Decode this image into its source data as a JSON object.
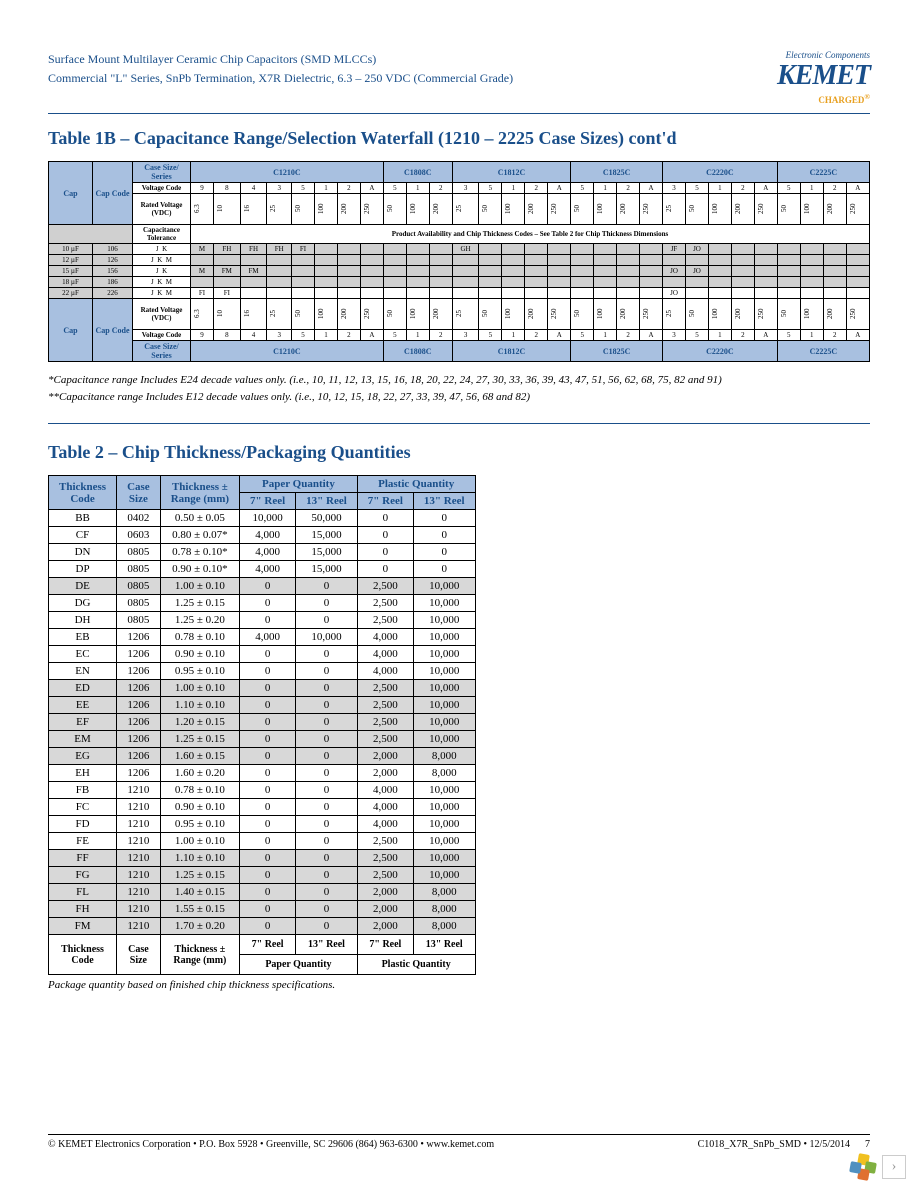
{
  "header": {
    "line1": "Surface Mount Multilayer Ceramic Chip Capacitors (SMD MLCCs)",
    "line2": "Commercial \"L\" Series, SnPb Termination, X7R Dielectric, 6.3 – 250 VDC (Commercial Grade)",
    "logo_top": "Electronic Components",
    "logo_main": "KEMET",
    "logo_sub": "CHARGED"
  },
  "table1": {
    "title": "Table 1B – Capacitance Range/Selection Waterfall (1210 – 2225 Case Sizes) cont'd",
    "header_labels": {
      "cap": "Cap",
      "cap_code": "Cap Code",
      "case_series": "Case Size/\nSeries",
      "voltage_code": "Voltage Code",
      "rated_voltage": "Rated Voltage (VDC)",
      "cap_tol": "Capacitance Tolerance",
      "availability": "Product Availability and Chip Thickness Codes – See Table 2 for Chip Thickness Dimensions"
    },
    "series": [
      "C1210C",
      "C1808C",
      "C1812C",
      "C1825C",
      "C2220C",
      "C2225C"
    ],
    "voltage_codes_1210": [
      "9",
      "8",
      "4",
      "3",
      "5",
      "1",
      "2",
      "A"
    ],
    "voltage_codes_small": [
      "5",
      "1",
      "2"
    ],
    "voltage_codes_1812": [
      "3",
      "5",
      "1",
      "2",
      "A"
    ],
    "voltage_codes_1825": [
      "5",
      "1",
      "2",
      "A"
    ],
    "voltage_codes_2220": [
      "3",
      "5",
      "1",
      "2",
      "A"
    ],
    "voltage_codes_2225": [
      "5",
      "1",
      "2",
      "A"
    ],
    "rated_1210": [
      "6.3",
      "10",
      "16",
      "25",
      "50",
      "100",
      "200",
      "250"
    ],
    "rated_small": [
      "50",
      "100",
      "200"
    ],
    "rated_1812": [
      "25",
      "50",
      "100",
      "200",
      "250"
    ],
    "rated_1825": [
      "50",
      "100",
      "200",
      "250"
    ],
    "rated_2220": [
      "25",
      "50",
      "100",
      "200",
      "250"
    ],
    "rated_2225": [
      "50",
      "100",
      "200",
      "250"
    ],
    "rows": [
      {
        "cap": "10 µF",
        "code": "106",
        "tol": [
          "J",
          "K"
        ],
        "c1210": "M FH FH FH FI",
        "c1808": "",
        "c1812": "GH",
        "c1825": "",
        "c2220": "JF JO",
        "c2225": ""
      },
      {
        "cap": "12 µF",
        "code": "126",
        "tol": [
          "J",
          "K",
          "M"
        ],
        "c1210": "",
        "c1808": "",
        "c1812": "",
        "c1825": "",
        "c2220": "",
        "c2225": ""
      },
      {
        "cap": "15 µF",
        "code": "156",
        "tol": [
          "J",
          "K"
        ],
        "c1210": "M FM FM",
        "c1808": "",
        "c1812": "",
        "c1825": "",
        "c2220": "JO JO",
        "c2225": ""
      },
      {
        "cap": "18 µF",
        "code": "186",
        "tol": [
          "J",
          "K",
          "M"
        ],
        "c1210": "",
        "c1808": "",
        "c1812": "",
        "c1825": "",
        "c2220": "",
        "c2225": ""
      },
      {
        "cap": "22 µF",
        "code": "226",
        "tol": [
          "J",
          "K",
          "M"
        ],
        "c1210": "FI FI",
        "c1808": "",
        "c1812": "",
        "c1825": "",
        "c2220": "JO",
        "c2225": ""
      }
    ]
  },
  "footnotes": {
    "f1": "*Capacitance range Includes E24 decade values only. (i.e., 10, 11, 12, 13, 15, 16, 18, 20, 22, 24, 27, 30, 33, 36, 39, 43, 47, 51, 56, 62, 68, 75, 82 and 91)",
    "f2": "**Capacitance range Includes E12 decade values only. (i.e., 10, 12, 15, 18, 22, 27, 33, 39, 47, 56, 68 and 82)"
  },
  "table2": {
    "title": "Table 2 – Chip Thickness/Packaging Quantities",
    "headers": {
      "thickness_code": "Thickness Code",
      "case_size": "Case Size",
      "thickness_range": "Thickness ± Range (mm)",
      "paper": "Paper Quantity",
      "plastic": "Plastic Quantity",
      "reel7": "7\" Reel",
      "reel13": "13\" Reel"
    },
    "rows": [
      {
        "g": 0,
        "c": "BB",
        "s": "0402",
        "t": "0.50 ± 0.05",
        "p7": "10,000",
        "p13": "50,000",
        "pl7": "0",
        "pl13": "0"
      },
      {
        "g": 0,
        "c": "CF",
        "s": "0603",
        "t": "0.80 ± 0.07*",
        "p7": "4,000",
        "p13": "15,000",
        "pl7": "0",
        "pl13": "0"
      },
      {
        "g": 0,
        "c": "DN",
        "s": "0805",
        "t": "0.78 ± 0.10*",
        "p7": "4,000",
        "p13": "15,000",
        "pl7": "0",
        "pl13": "0"
      },
      {
        "g": 0,
        "c": "DP",
        "s": "0805",
        "t": "0.90 ± 0.10*",
        "p7": "4,000",
        "p13": "15,000",
        "pl7": "0",
        "pl13": "0"
      },
      {
        "g": 1,
        "c": "DE",
        "s": "0805",
        "t": "1.00 ± 0.10",
        "p7": "0",
        "p13": "0",
        "pl7": "2,500",
        "pl13": "10,000"
      },
      {
        "g": 0,
        "c": "DG",
        "s": "0805",
        "t": "1.25 ± 0.15",
        "p7": "0",
        "p13": "0",
        "pl7": "2,500",
        "pl13": "10,000"
      },
      {
        "g": 0,
        "c": "DH",
        "s": "0805",
        "t": "1.25 ± 0.20",
        "p7": "0",
        "p13": "0",
        "pl7": "2,500",
        "pl13": "10,000"
      },
      {
        "g": 0,
        "c": "EB",
        "s": "1206",
        "t": "0.78 ± 0.10",
        "p7": "4,000",
        "p13": "10,000",
        "pl7": "4,000",
        "pl13": "10,000"
      },
      {
        "g": 0,
        "c": "EC",
        "s": "1206",
        "t": "0.90 ± 0.10",
        "p7": "0",
        "p13": "0",
        "pl7": "4,000",
        "pl13": "10,000"
      },
      {
        "g": 0,
        "c": "EN",
        "s": "1206",
        "t": "0.95 ± 0.10",
        "p7": "0",
        "p13": "0",
        "pl7": "4,000",
        "pl13": "10,000"
      },
      {
        "g": 1,
        "c": "ED",
        "s": "1206",
        "t": "1.00 ± 0.10",
        "p7": "0",
        "p13": "0",
        "pl7": "2,500",
        "pl13": "10,000"
      },
      {
        "g": 1,
        "c": "EE",
        "s": "1206",
        "t": "1.10 ± 0.10",
        "p7": "0",
        "p13": "0",
        "pl7": "2,500",
        "pl13": "10,000"
      },
      {
        "g": 1,
        "c": "EF",
        "s": "1206",
        "t": "1.20 ± 0.15",
        "p7": "0",
        "p13": "0",
        "pl7": "2,500",
        "pl13": "10,000"
      },
      {
        "g": 1,
        "c": "EM",
        "s": "1206",
        "t": "1.25 ± 0.15",
        "p7": "0",
        "p13": "0",
        "pl7": "2,500",
        "pl13": "10,000"
      },
      {
        "g": 1,
        "c": "EG",
        "s": "1206",
        "t": "1.60 ± 0.15",
        "p7": "0",
        "p13": "0",
        "pl7": "2,000",
        "pl13": "8,000"
      },
      {
        "g": 0,
        "c": "EH",
        "s": "1206",
        "t": "1.60 ± 0.20",
        "p7": "0",
        "p13": "0",
        "pl7": "2,000",
        "pl13": "8,000"
      },
      {
        "g": 0,
        "c": "FB",
        "s": "1210",
        "t": "0.78 ± 0.10",
        "p7": "0",
        "p13": "0",
        "pl7": "4,000",
        "pl13": "10,000"
      },
      {
        "g": 0,
        "c": "FC",
        "s": "1210",
        "t": "0.90 ± 0.10",
        "p7": "0",
        "p13": "0",
        "pl7": "4,000",
        "pl13": "10,000"
      },
      {
        "g": 0,
        "c": "FD",
        "s": "1210",
        "t": "0.95 ± 0.10",
        "p7": "0",
        "p13": "0",
        "pl7": "4,000",
        "pl13": "10,000"
      },
      {
        "g": 0,
        "c": "FE",
        "s": "1210",
        "t": "1.00 ± 0.10",
        "p7": "0",
        "p13": "0",
        "pl7": "2,500",
        "pl13": "10,000"
      },
      {
        "g": 1,
        "c": "FF",
        "s": "1210",
        "t": "1.10 ± 0.10",
        "p7": "0",
        "p13": "0",
        "pl7": "2,500",
        "pl13": "10,000"
      },
      {
        "g": 1,
        "c": "FG",
        "s": "1210",
        "t": "1.25 ± 0.15",
        "p7": "0",
        "p13": "0",
        "pl7": "2,500",
        "pl13": "10,000"
      },
      {
        "g": 1,
        "c": "FL",
        "s": "1210",
        "t": "1.40 ± 0.15",
        "p7": "0",
        "p13": "0",
        "pl7": "2,000",
        "pl13": "8,000"
      },
      {
        "g": 1,
        "c": "FH",
        "s": "1210",
        "t": "1.55 ± 0.15",
        "p7": "0",
        "p13": "0",
        "pl7": "2,000",
        "pl13": "8,000"
      },
      {
        "g": 1,
        "c": "FM",
        "s": "1210",
        "t": "1.70 ± 0.20",
        "p7": "0",
        "p13": "0",
        "pl7": "2,000",
        "pl13": "8,000"
      }
    ],
    "note": "Package quantity based on finished chip thickness specifications."
  },
  "footer": {
    "left": "© KEMET Electronics Corporation • P.O. Box 5928 • Greenville, SC 29606 (864) 963-6300 • www.kemet.com",
    "right": "C1018_X7R_SnPb_SMD • 12/5/2014",
    "page": "7"
  },
  "colors": {
    "blue": "#1a4f8a",
    "header_blue": "#a8c0e0",
    "grey": "#d0d0d0",
    "orange": "#e8a020"
  }
}
